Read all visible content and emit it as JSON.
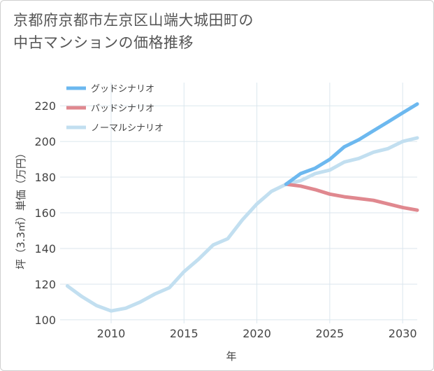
{
  "title_line1": "京都府京都市左京区山端大城田町の",
  "title_line2": "中古マンションの価格推移",
  "chart_data": {
    "type": "line",
    "title": "京都府京都市左京区山端大城田町の中古マンションの価格推移",
    "xlabel": "年",
    "ylabel": "坪（3.3㎡）単価（万円）",
    "xlim": [
      2006.5,
      2031
    ],
    "ylim": [
      98,
      233
    ],
    "x_ticks": [
      2010,
      2015,
      2020,
      2025,
      2030
    ],
    "y_ticks": [
      100,
      120,
      140,
      160,
      180,
      200,
      220
    ],
    "grid": true,
    "legend_position": "top-left",
    "series": [
      {
        "name": "グッドシナリオ",
        "color": "#6cb8ef",
        "x": [
          2022,
          2023,
          2024,
          2025,
          2026,
          2027,
          2028,
          2029,
          2030,
          2031
        ],
        "y": [
          176,
          182,
          185,
          190,
          197,
          201,
          206,
          211,
          216,
          221
        ]
      },
      {
        "name": "バッドシナリオ",
        "color": "#e0888f",
        "x": [
          2022,
          2023,
          2024,
          2025,
          2026,
          2027,
          2028,
          2029,
          2030,
          2031
        ],
        "y": [
          176,
          175,
          173,
          170.5,
          169,
          168,
          167,
          165,
          163,
          161.5
        ]
      },
      {
        "name": "ノーマルシナリオ",
        "color": "#c2dff0",
        "x": [
          2007,
          2008,
          2009,
          2010,
          2011,
          2012,
          2013,
          2014,
          2015,
          2016,
          2017,
          2018,
          2019,
          2020,
          2021,
          2022,
          2023,
          2024,
          2025,
          2026,
          2027,
          2028,
          2029,
          2030,
          2031
        ],
        "y": [
          119,
          113,
          108,
          105,
          106.5,
          110,
          114.5,
          118,
          127,
          134,
          142,
          145.5,
          156,
          165,
          172,
          176,
          178,
          182,
          184,
          188.5,
          190.5,
          194,
          196,
          200,
          202
        ]
      }
    ]
  }
}
